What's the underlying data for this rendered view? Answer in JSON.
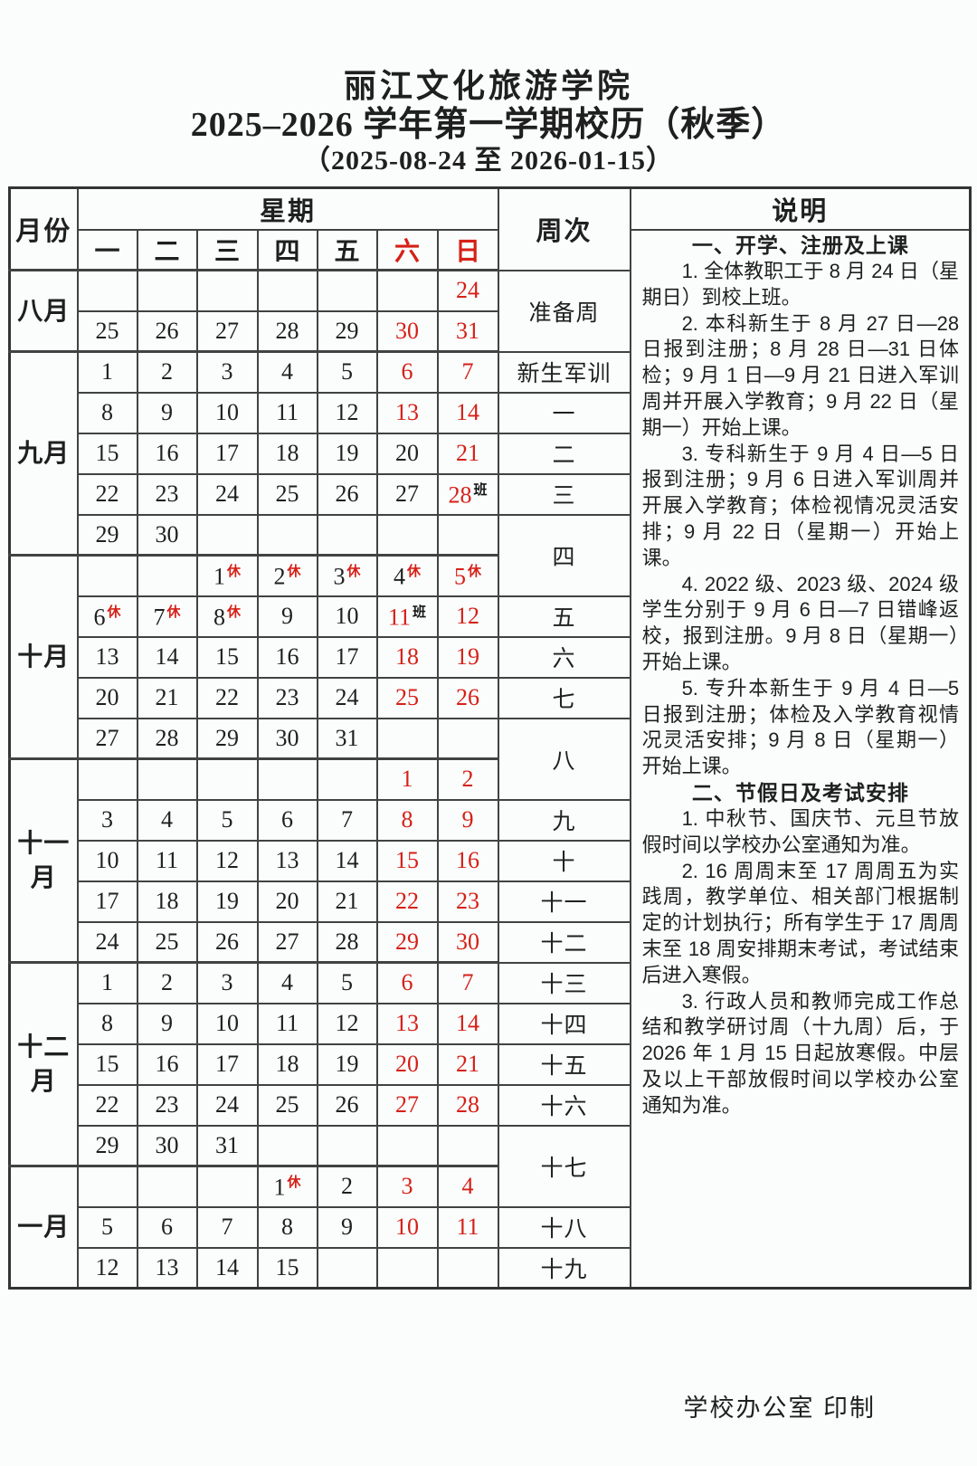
{
  "colors": {
    "accent_red": "#d62017",
    "text": "#1f1f1f",
    "border": "#424242",
    "page_background": "#fbfdfd"
  },
  "header": {
    "school": "丽江文化旅游学院",
    "title": "2025–2026 学年第一学期校历（秋季）",
    "range": "（2025-08-24 至 2026-01-15）"
  },
  "footer": {
    "credit": "学校办公室  印制"
  },
  "calendar": {
    "month_col_header": "月份",
    "week_group_header": "星期",
    "weeknum_col_header": "周次",
    "notes_col_header": "说明",
    "weekdays": [
      {
        "t": "一",
        "red": false
      },
      {
        "t": "二",
        "red": false
      },
      {
        "t": "三",
        "red": false
      },
      {
        "t": "四",
        "red": false
      },
      {
        "t": "五",
        "red": false
      },
      {
        "t": "六",
        "red": true
      },
      {
        "t": "日",
        "red": true
      }
    ],
    "rows": [
      {
        "monthStart": true,
        "month": {
          "label": "八月",
          "span": 2
        },
        "week": {
          "label": "准备周",
          "span": 2
        },
        "days": [
          {
            "t": ""
          },
          {
            "t": ""
          },
          {
            "t": ""
          },
          {
            "t": ""
          },
          {
            "t": ""
          },
          {
            "t": ""
          },
          {
            "t": "24",
            "red": true
          }
        ]
      },
      {
        "days": [
          {
            "t": "25"
          },
          {
            "t": "26"
          },
          {
            "t": "27"
          },
          {
            "t": "28"
          },
          {
            "t": "29"
          },
          {
            "t": "30",
            "red": true
          },
          {
            "t": "31",
            "red": true
          }
        ]
      },
      {
        "monthStart": true,
        "month": {
          "label": "九月",
          "span": 5
        },
        "week": {
          "label": "新生军训",
          "span": 1
        },
        "days": [
          {
            "t": "1"
          },
          {
            "t": "2"
          },
          {
            "t": "3"
          },
          {
            "t": "4"
          },
          {
            "t": "5"
          },
          {
            "t": "6",
            "red": true
          },
          {
            "t": "7",
            "red": true
          }
        ]
      },
      {
        "week": {
          "label": "一",
          "span": 1
        },
        "days": [
          {
            "t": "8"
          },
          {
            "t": "9"
          },
          {
            "t": "10"
          },
          {
            "t": "11"
          },
          {
            "t": "12"
          },
          {
            "t": "13",
            "red": true
          },
          {
            "t": "14",
            "red": true
          }
        ]
      },
      {
        "week": {
          "label": "二",
          "span": 1
        },
        "days": [
          {
            "t": "15"
          },
          {
            "t": "16"
          },
          {
            "t": "17"
          },
          {
            "t": "18"
          },
          {
            "t": "19"
          },
          {
            "t": "20"
          },
          {
            "t": "21",
            "red": true
          }
        ]
      },
      {
        "week": {
          "label": "三",
          "span": 1
        },
        "days": [
          {
            "t": "22"
          },
          {
            "t": "23"
          },
          {
            "t": "24"
          },
          {
            "t": "25"
          },
          {
            "t": "26"
          },
          {
            "t": "27"
          },
          {
            "t": "28",
            "red": true,
            "mark": "班",
            "markRed": false
          }
        ]
      },
      {
        "week": {
          "label": "四",
          "span": 2
        },
        "days": [
          {
            "t": "29"
          },
          {
            "t": "30"
          },
          {
            "t": ""
          },
          {
            "t": ""
          },
          {
            "t": ""
          },
          {
            "t": ""
          },
          {
            "t": ""
          }
        ]
      },
      {
        "monthStart": true,
        "month": {
          "label": "十月",
          "span": 5
        },
        "days": [
          {
            "t": ""
          },
          {
            "t": ""
          },
          {
            "t": "1",
            "mark": "休",
            "markRed": true
          },
          {
            "t": "2",
            "mark": "休",
            "markRed": true
          },
          {
            "t": "3",
            "mark": "休",
            "markRed": true
          },
          {
            "t": "4",
            "mark": "休",
            "markRed": true
          },
          {
            "t": "5",
            "red": true,
            "mark": "休",
            "markRed": true
          }
        ]
      },
      {
        "week": {
          "label": "五",
          "span": 1
        },
        "days": [
          {
            "t": "6",
            "mark": "休",
            "markRed": true
          },
          {
            "t": "7",
            "mark": "休",
            "markRed": true
          },
          {
            "t": "8",
            "mark": "休",
            "markRed": true
          },
          {
            "t": "9"
          },
          {
            "t": "10"
          },
          {
            "t": "11",
            "red": true,
            "mark": "班",
            "markRed": false
          },
          {
            "t": "12",
            "red": true
          }
        ]
      },
      {
        "week": {
          "label": "六",
          "span": 1
        },
        "days": [
          {
            "t": "13"
          },
          {
            "t": "14"
          },
          {
            "t": "15"
          },
          {
            "t": "16"
          },
          {
            "t": "17"
          },
          {
            "t": "18",
            "red": true
          },
          {
            "t": "19",
            "red": true
          }
        ]
      },
      {
        "week": {
          "label": "七",
          "span": 1
        },
        "days": [
          {
            "t": "20"
          },
          {
            "t": "21"
          },
          {
            "t": "22"
          },
          {
            "t": "23"
          },
          {
            "t": "24"
          },
          {
            "t": "25",
            "red": true
          },
          {
            "t": "26",
            "red": true
          }
        ]
      },
      {
        "week": {
          "label": "八",
          "span": 2
        },
        "days": [
          {
            "t": "27"
          },
          {
            "t": "28"
          },
          {
            "t": "29"
          },
          {
            "t": "30"
          },
          {
            "t": "31"
          },
          {
            "t": ""
          },
          {
            "t": ""
          }
        ]
      },
      {
        "monthStart": true,
        "month": {
          "label": "十一月",
          "span": 5
        },
        "days": [
          {
            "t": ""
          },
          {
            "t": ""
          },
          {
            "t": ""
          },
          {
            "t": ""
          },
          {
            "t": ""
          },
          {
            "t": "1",
            "red": true
          },
          {
            "t": "2",
            "red": true
          }
        ]
      },
      {
        "week": {
          "label": "九",
          "span": 1
        },
        "days": [
          {
            "t": "3"
          },
          {
            "t": "4"
          },
          {
            "t": "5"
          },
          {
            "t": "6"
          },
          {
            "t": "7"
          },
          {
            "t": "8",
            "red": true
          },
          {
            "t": "9",
            "red": true
          }
        ]
      },
      {
        "week": {
          "label": "十",
          "span": 1
        },
        "days": [
          {
            "t": "10"
          },
          {
            "t": "11"
          },
          {
            "t": "12"
          },
          {
            "t": "13"
          },
          {
            "t": "14"
          },
          {
            "t": "15",
            "red": true
          },
          {
            "t": "16",
            "red": true
          }
        ]
      },
      {
        "week": {
          "label": "十一",
          "span": 1
        },
        "days": [
          {
            "t": "17"
          },
          {
            "t": "18"
          },
          {
            "t": "19"
          },
          {
            "t": "20"
          },
          {
            "t": "21"
          },
          {
            "t": "22",
            "red": true
          },
          {
            "t": "23",
            "red": true
          }
        ]
      },
      {
        "week": {
          "label": "十二",
          "span": 1
        },
        "days": [
          {
            "t": "24"
          },
          {
            "t": "25"
          },
          {
            "t": "26"
          },
          {
            "t": "27"
          },
          {
            "t": "28"
          },
          {
            "t": "29",
            "red": true
          },
          {
            "t": "30",
            "red": true
          }
        ]
      },
      {
        "monthStart": true,
        "month": {
          "label": "十二月",
          "span": 5
        },
        "week": {
          "label": "十三",
          "span": 1
        },
        "days": [
          {
            "t": "1"
          },
          {
            "t": "2"
          },
          {
            "t": "3"
          },
          {
            "t": "4"
          },
          {
            "t": "5"
          },
          {
            "t": "6",
            "red": true
          },
          {
            "t": "7",
            "red": true
          }
        ]
      },
      {
        "week": {
          "label": "十四",
          "span": 1
        },
        "days": [
          {
            "t": "8"
          },
          {
            "t": "9"
          },
          {
            "t": "10"
          },
          {
            "t": "11"
          },
          {
            "t": "12"
          },
          {
            "t": "13",
            "red": true
          },
          {
            "t": "14",
            "red": true
          }
        ]
      },
      {
        "week": {
          "label": "十五",
          "span": 1
        },
        "days": [
          {
            "t": "15"
          },
          {
            "t": "16"
          },
          {
            "t": "17"
          },
          {
            "t": "18"
          },
          {
            "t": "19"
          },
          {
            "t": "20",
            "red": true
          },
          {
            "t": "21",
            "red": true
          }
        ]
      },
      {
        "week": {
          "label": "十六",
          "span": 1
        },
        "days": [
          {
            "t": "22"
          },
          {
            "t": "23"
          },
          {
            "t": "24"
          },
          {
            "t": "25"
          },
          {
            "t": "26"
          },
          {
            "t": "27",
            "red": true
          },
          {
            "t": "28",
            "red": true
          }
        ]
      },
      {
        "week": {
          "label": "十七",
          "span": 2
        },
        "days": [
          {
            "t": "29"
          },
          {
            "t": "30"
          },
          {
            "t": "31"
          },
          {
            "t": ""
          },
          {
            "t": ""
          },
          {
            "t": ""
          },
          {
            "t": ""
          }
        ]
      },
      {
        "monthStart": true,
        "month": {
          "label": "一月",
          "span": 3
        },
        "days": [
          {
            "t": ""
          },
          {
            "t": ""
          },
          {
            "t": ""
          },
          {
            "t": "1",
            "mark": "休",
            "markRed": true
          },
          {
            "t": "2"
          },
          {
            "t": "3",
            "red": true
          },
          {
            "t": "4",
            "red": true
          }
        ]
      },
      {
        "week": {
          "label": "十八",
          "span": 1
        },
        "days": [
          {
            "t": "5"
          },
          {
            "t": "6"
          },
          {
            "t": "7"
          },
          {
            "t": "8"
          },
          {
            "t": "9"
          },
          {
            "t": "10",
            "red": true
          },
          {
            "t": "11",
            "red": true
          }
        ]
      },
      {
        "week": {
          "label": "十九",
          "span": 1
        },
        "days": [
          {
            "t": "12"
          },
          {
            "t": "13"
          },
          {
            "t": "14"
          },
          {
            "t": "15"
          },
          {
            "t": ""
          },
          {
            "t": ""
          },
          {
            "t": ""
          }
        ]
      }
    ]
  },
  "notes": {
    "sections": [
      {
        "heading": "一、开学、注册及上课",
        "items": [
          "1. 全体教职工于 8 月 24 日（星期日）到校上班。",
          "2. 本科新生于 8 月 27 日—28 日报到注册；8 月 28 日—31 日体检；9 月 1 日—9 月 21 日进入军训周并开展入学教育；9 月 22 日（星期一）开始上课。",
          "3. 专科新生于 9 月 4 日—5 日报到注册；9 月 6 日进入军训周并开展入学教育；体检视情况灵活安排；9 月 22 日（星期一）开始上课。",
          "4. 2022 级、2023 级、2024 级学生分别于 9 月 6 日—7 日错峰返校，报到注册。9 月 8 日（星期一）开始上课。",
          "5. 专升本新生于 9 月 4 日—5 日报到注册；体检及入学教育视情况灵活安排；9 月 8 日（星期一）开始上课。"
        ]
      },
      {
        "heading": "二、节假日及考试安排",
        "items": [
          "1. 中秋节、国庆节、元旦节放假时间以学校办公室通知为准。",
          "2. 16 周周末至 17 周周五为实践周，教学单位、相关部门根据制定的计划执行；所有学生于 17 周周末至 18 周安排期末考试，考试结束后进入寒假。",
          "3. 行政人员和教师完成工作总结和教学研讨周（十九周）后，于 2026 年 1 月 15 日起放寒假。中层及以上干部放假时间以学校办公室通知为准。"
        ]
      }
    ]
  }
}
